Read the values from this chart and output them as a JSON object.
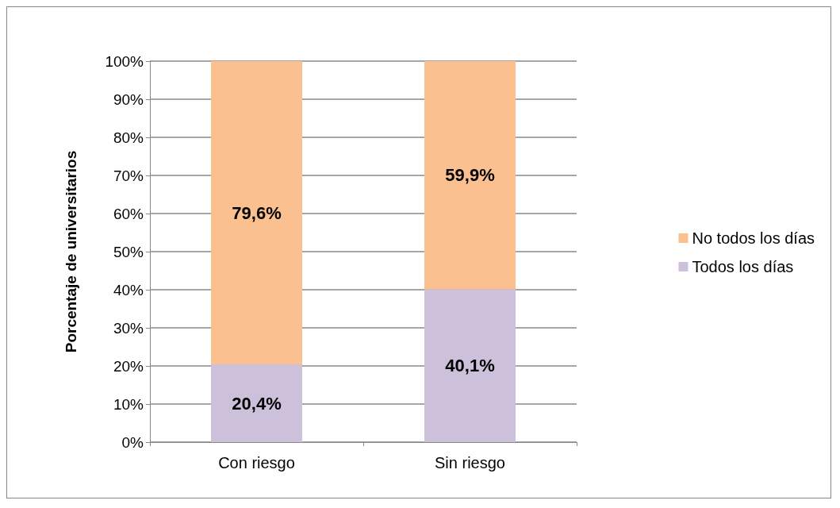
{
  "chart_data": {
    "type": "bar",
    "stacked": true,
    "ylabel": "Porcentaje de universitarios",
    "categories": [
      "Con riesgo",
      "Sin riesgo"
    ],
    "series": [
      {
        "name": "Todos los días",
        "color": "#ccc0da",
        "values": [
          20.4,
          40.1
        ],
        "value_labels": [
          "20,4%",
          "40,1%"
        ]
      },
      {
        "name": "No todos los días",
        "color": "#fac090",
        "values": [
          79.6,
          59.9
        ],
        "value_labels": [
          "79,6%",
          "59,9%"
        ]
      }
    ],
    "ylim": [
      0,
      100
    ],
    "yticks": [
      {
        "value": 0,
        "label": "0%"
      },
      {
        "value": 10,
        "label": "10%"
      },
      {
        "value": 20,
        "label": "20%"
      },
      {
        "value": 30,
        "label": "30%"
      },
      {
        "value": 40,
        "label": "40%"
      },
      {
        "value": 50,
        "label": "50%"
      },
      {
        "value": 60,
        "label": "60%"
      },
      {
        "value": 70,
        "label": "70%"
      },
      {
        "value": 80,
        "label": "80%"
      },
      {
        "value": 90,
        "label": "90%"
      },
      {
        "value": 100,
        "label": "100%"
      }
    ],
    "grid": "y",
    "legend": "right"
  }
}
